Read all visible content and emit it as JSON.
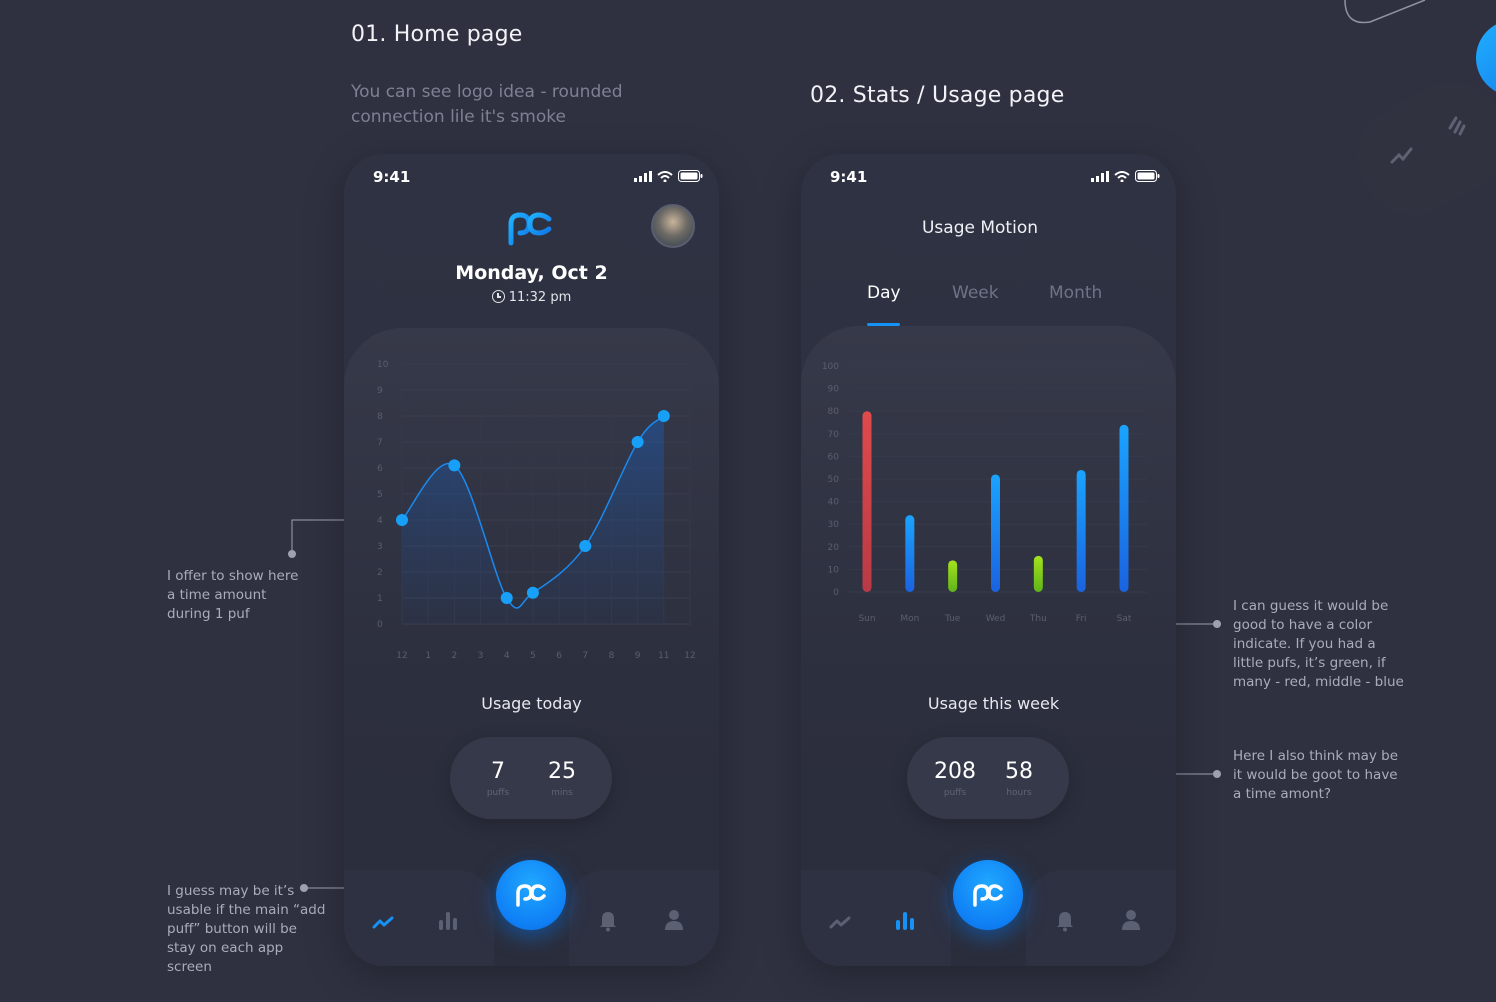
{
  "sections": {
    "home_title": "01. Home page",
    "home_note": "You can see logo idea - rounded connection lile it's smoke",
    "stats_title": "02. Stats / Usage page"
  },
  "annotations": {
    "time_amount": "I offer to show here a time amount during 1 puf",
    "add_puff": "I guess may be it’s usable if the main “add puff” button will be stay on each app screen",
    "color_indicate": "I can guess it would be good to have a color indicate. If you had a little pufs, it’s green, if many - red, middle - blue",
    "time_amont": "Here I also think may be it would be goot to have a time amont?"
  },
  "home": {
    "status_time": "9:41",
    "date": "Monday, Oct 2",
    "time": "11:32 pm",
    "usage_label": "Usage today",
    "stats": [
      {
        "value": "7",
        "label": "puffs"
      },
      {
        "value": "25",
        "label": "mins"
      }
    ]
  },
  "stats_page": {
    "status_time": "9:41",
    "title": "Usage Motion",
    "tabs": [
      "Day",
      "Week",
      "Month"
    ],
    "active_tab": "Day",
    "usage_label": "Usage this week",
    "stats": [
      {
        "value": "208",
        "label": "puffs"
      },
      {
        "value": "58",
        "label": "hours"
      }
    ]
  },
  "colors": {
    "accent_blue": "#1592f5",
    "bar_red": "#d94545",
    "bar_green": "#8ed21c",
    "background": "#2f3141"
  },
  "chart_data": [
    {
      "type": "line",
      "x_tick_labels": [
        "12",
        "1",
        "2",
        "3",
        "4",
        "5",
        "6",
        "7",
        "8",
        "9",
        "11",
        "12"
      ],
      "y_tick_labels": [
        "0",
        "1",
        "2",
        "3",
        "4",
        "5",
        "6",
        "7",
        "8",
        "9",
        "10"
      ],
      "ylim": [
        0,
        10
      ],
      "points": [
        {
          "x": "12",
          "y": 4
        },
        {
          "x": "2",
          "y": 6.1
        },
        {
          "x": "4",
          "y": 1
        },
        {
          "x": "5",
          "y": 1.2
        },
        {
          "x": "7",
          "y": 3
        },
        {
          "x": "9",
          "y": 7
        },
        {
          "x": "11",
          "y": 8
        }
      ]
    },
    {
      "type": "bar",
      "categories": [
        "Sun",
        "Mon",
        "Tue",
        "Wed",
        "Thu",
        "Fri",
        "Sat"
      ],
      "values": [
        80,
        34,
        14,
        52,
        16,
        54,
        74
      ],
      "bar_colors": [
        "red",
        "blue",
        "green",
        "blue",
        "green",
        "blue",
        "blue"
      ],
      "y_tick_labels": [
        "0",
        "10",
        "20",
        "30",
        "40",
        "50",
        "60",
        "70",
        "80",
        "90",
        "100"
      ],
      "ylim": [
        0,
        100
      ]
    }
  ]
}
